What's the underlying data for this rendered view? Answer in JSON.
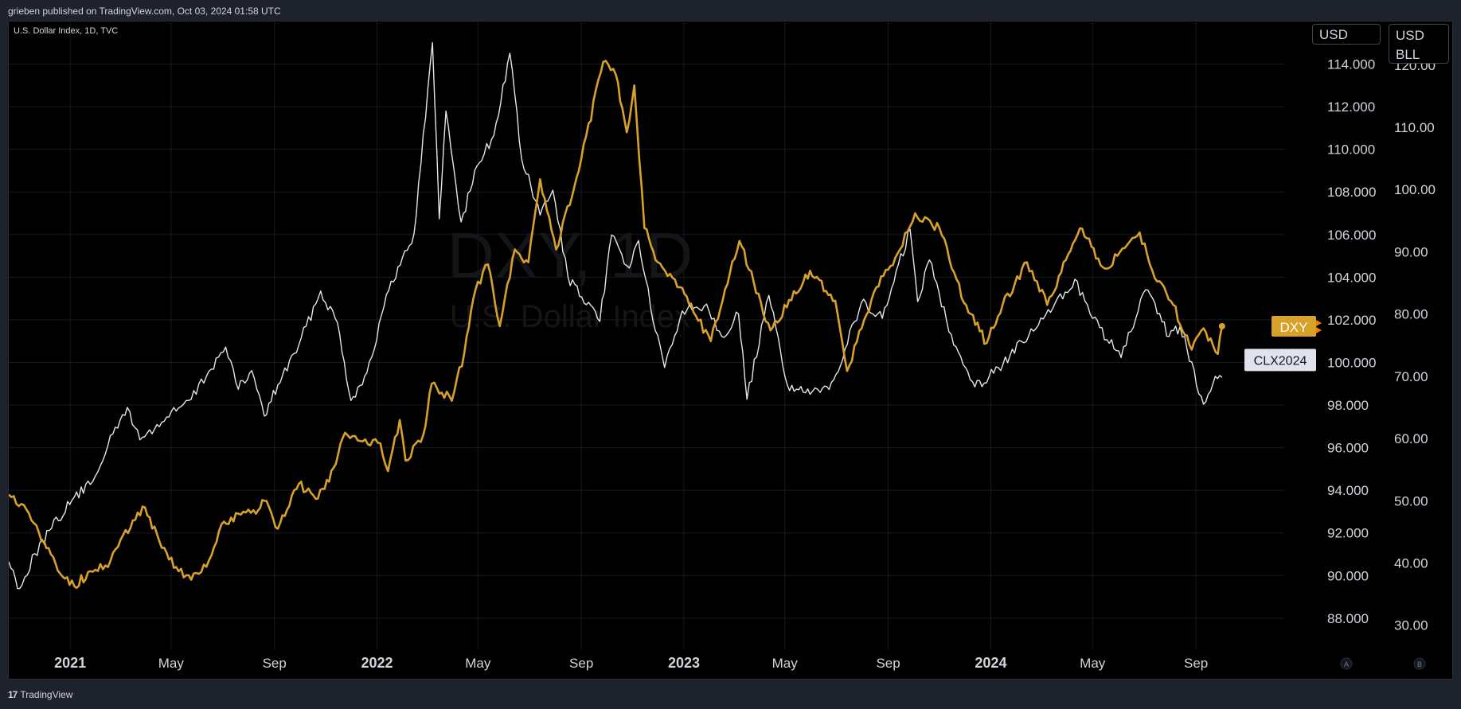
{
  "header": {
    "published_text": "grieben published on TradingView.com, Oct 03, 2024 01:58 UTC",
    "symbol_legend": "U.S. Dollar Index, 1D, TVC"
  },
  "footer": {
    "logo_text": "TradingView",
    "logo_icon": "tradingview-logo-icon"
  },
  "scale_buttons": {
    "left": "USD",
    "right_line1": "USD",
    "right_line2": "BLL"
  },
  "watermark": {
    "line1": "DXY, 1D",
    "line2": "U.S. Dollar Index"
  },
  "axis_badges": {
    "a": "A",
    "b": "B"
  },
  "colors": {
    "dxy": "#d8a129",
    "clx": "#e6e6e6",
    "background": "#000000",
    "frame": "#1e222d",
    "grid": "#161a23"
  },
  "chart_data": {
    "type": "line",
    "title": "",
    "grid": true,
    "x_tick_labels": [
      "2021",
      "May",
      "Sep",
      "2022",
      "May",
      "Sep",
      "2023",
      "May",
      "Sep",
      "2024",
      "May",
      "Sep"
    ],
    "x_tick_dates": [
      "2021-01-01",
      "2021-05-01",
      "2021-09-01",
      "2022-01-01",
      "2022-05-01",
      "2022-09-01",
      "2023-01-01",
      "2023-05-01",
      "2023-09-01",
      "2024-01-01",
      "2024-05-01",
      "2024-09-01"
    ],
    "x_range": [
      "2020-10-20",
      "2024-12-15"
    ],
    "left_axis": {
      "currency": "USD",
      "ylim": [
        86.5,
        116
      ],
      "ticks": [
        "88.000",
        "90.000",
        "92.000",
        "94.000",
        "96.000",
        "98.000",
        "100.000",
        "102.000",
        "104.000",
        "106.000",
        "108.000",
        "110.000",
        "112.000",
        "114.000"
      ],
      "tick_values": [
        88,
        90,
        92,
        94,
        96,
        98,
        100,
        102,
        104,
        106,
        108,
        110,
        112,
        114
      ]
    },
    "right_axis": {
      "currency": "USD / BLL",
      "ylim": [
        26,
        127
      ],
      "ticks": [
        "30.00",
        "40.00",
        "50.00",
        "60.00",
        "70.00",
        "80.00",
        "90.00",
        "100.00",
        "110.00",
        "120.00"
      ],
      "tick_values": [
        30,
        40,
        50,
        60,
        70,
        80,
        90,
        100,
        110,
        120
      ]
    },
    "series": [
      {
        "name": "DXY",
        "axis": "left",
        "color": "#d8a129",
        "last_value_label": "DXY",
        "points": [
          [
            "2020-10-20",
            93.8
          ],
          [
            "2020-11-10",
            93.1
          ],
          [
            "2020-12-01",
            91.6
          ],
          [
            "2020-12-20",
            90.1
          ],
          [
            "2021-01-06",
            89.5
          ],
          [
            "2021-01-25",
            90.2
          ],
          [
            "2021-02-15",
            90.4
          ],
          [
            "2021-03-05",
            91.9
          ],
          [
            "2021-03-31",
            93.2
          ],
          [
            "2021-04-20",
            91.3
          ],
          [
            "2021-05-10",
            90.2
          ],
          [
            "2021-05-25",
            89.8
          ],
          [
            "2021-06-15",
            90.7
          ],
          [
            "2021-06-30",
            92.4
          ],
          [
            "2021-07-20",
            92.9
          ],
          [
            "2021-08-10",
            92.9
          ],
          [
            "2021-08-20",
            93.5
          ],
          [
            "2021-09-05",
            92.2
          ],
          [
            "2021-09-30",
            94.3
          ],
          [
            "2021-10-20",
            93.6
          ],
          [
            "2021-11-05",
            94.4
          ],
          [
            "2021-11-24",
            96.7
          ],
          [
            "2021-12-15",
            96.3
          ],
          [
            "2022-01-05",
            96.2
          ],
          [
            "2022-01-14",
            94.9
          ],
          [
            "2022-01-28",
            97.3
          ],
          [
            "2022-02-04",
            95.4
          ],
          [
            "2022-02-25",
            96.6
          ],
          [
            "2022-03-07",
            99.0
          ],
          [
            "2022-03-31",
            98.2
          ],
          [
            "2022-04-15",
            100.5
          ],
          [
            "2022-04-28",
            103.4
          ],
          [
            "2022-05-13",
            104.6
          ],
          [
            "2022-05-27",
            101.7
          ],
          [
            "2022-06-14",
            105.3
          ],
          [
            "2022-06-30",
            104.7
          ],
          [
            "2022-07-14",
            108.6
          ],
          [
            "2022-08-02",
            105.3
          ],
          [
            "2022-08-29",
            109.0
          ],
          [
            "2022-09-27",
            114.1
          ],
          [
            "2022-10-12",
            113.5
          ],
          [
            "2022-10-25",
            110.8
          ],
          [
            "2022-11-03",
            113.0
          ],
          [
            "2022-11-15",
            106.3
          ],
          [
            "2022-12-01",
            104.7
          ],
          [
            "2022-12-30",
            103.5
          ],
          [
            "2023-01-15",
            102.2
          ],
          [
            "2023-02-02",
            101.0
          ],
          [
            "2023-03-08",
            105.7
          ],
          [
            "2023-04-14",
            101.5
          ],
          [
            "2023-05-31",
            104.3
          ],
          [
            "2023-06-30",
            102.9
          ],
          [
            "2023-07-14",
            99.6
          ],
          [
            "2023-08-15",
            103.3
          ],
          [
            "2023-09-15",
            105.3
          ],
          [
            "2023-10-03",
            107.0
          ],
          [
            "2023-11-01",
            106.3
          ],
          [
            "2023-11-30",
            102.8
          ],
          [
            "2023-12-27",
            100.9
          ],
          [
            "2024-01-15",
            102.7
          ],
          [
            "2024-02-13",
            104.7
          ],
          [
            "2024-03-08",
            102.7
          ],
          [
            "2024-04-16",
            106.3
          ],
          [
            "2024-05-16",
            104.4
          ],
          [
            "2024-06-26",
            106.1
          ],
          [
            "2024-07-17",
            103.8
          ],
          [
            "2024-08-05",
            102.7
          ],
          [
            "2024-08-27",
            100.6
          ],
          [
            "2024-09-10",
            101.6
          ],
          [
            "2024-09-27",
            100.4
          ],
          [
            "2024-10-02",
            101.7
          ]
        ]
      },
      {
        "name": "CLX2024",
        "axis": "right",
        "color": "#e6e6e6",
        "last_value_label": "CLX2024",
        "points": [
          [
            "2020-10-20",
            40.2
          ],
          [
            "2020-11-02",
            35.9
          ],
          [
            "2020-11-20",
            41.5
          ],
          [
            "2020-12-10",
            45.6
          ],
          [
            "2021-01-06",
            50.6
          ],
          [
            "2021-01-25",
            52.6
          ],
          [
            "2021-02-15",
            58.9
          ],
          [
            "2021-03-10",
            65.0
          ],
          [
            "2021-03-25",
            59.8
          ],
          [
            "2021-04-20",
            62.6
          ],
          [
            "2021-05-10",
            64.9
          ],
          [
            "2021-05-25",
            66.3
          ],
          [
            "2021-06-15",
            70.8
          ],
          [
            "2021-07-05",
            74.7
          ],
          [
            "2021-07-20",
            67.9
          ],
          [
            "2021-08-05",
            70.9
          ],
          [
            "2021-08-20",
            63.6
          ],
          [
            "2021-09-05",
            68.6
          ],
          [
            "2021-09-30",
            75.0
          ],
          [
            "2021-10-26",
            83.7
          ],
          [
            "2021-11-15",
            78.6
          ],
          [
            "2021-12-01",
            66.1
          ],
          [
            "2021-12-20",
            70.6
          ],
          [
            "2022-01-15",
            83.8
          ],
          [
            "2022-02-14",
            92.9
          ],
          [
            "2022-03-08",
            123.6
          ],
          [
            "2022-03-16",
            95.3
          ],
          [
            "2022-03-24",
            112.6
          ],
          [
            "2022-04-11",
            94.8
          ],
          [
            "2022-04-30",
            103.8
          ],
          [
            "2022-05-20",
            108.7
          ],
          [
            "2022-06-08",
            121.9
          ],
          [
            "2022-06-22",
            104.9
          ],
          [
            "2022-07-14",
            95.9
          ],
          [
            "2022-07-29",
            99.9
          ],
          [
            "2022-08-16",
            86.0
          ],
          [
            "2022-09-07",
            81.5
          ],
          [
            "2022-09-23",
            78.8
          ],
          [
            "2022-10-07",
            92.7
          ],
          [
            "2022-10-28",
            87.4
          ],
          [
            "2022-11-08",
            91.8
          ],
          [
            "2022-11-28",
            77.3
          ],
          [
            "2022-12-09",
            71.4
          ],
          [
            "2022-12-30",
            80.5
          ],
          [
            "2023-01-28",
            81.6
          ],
          [
            "2023-02-15",
            76.4
          ],
          [
            "2023-03-07",
            80.0
          ],
          [
            "2023-03-17",
            66.3
          ],
          [
            "2023-04-12",
            83.0
          ],
          [
            "2023-05-04",
            68.6
          ],
          [
            "2023-05-31",
            67.1
          ],
          [
            "2023-06-12",
            67.4
          ],
          [
            "2023-06-28",
            69.4
          ],
          [
            "2023-07-31",
            81.8
          ],
          [
            "2023-08-25",
            79.3
          ],
          [
            "2023-09-27",
            93.6
          ],
          [
            "2023-10-06",
            82.0
          ],
          [
            "2023-10-20",
            88.7
          ],
          [
            "2023-11-15",
            76.7
          ],
          [
            "2023-12-13",
            68.3
          ],
          [
            "2024-01-10",
            71.4
          ],
          [
            "2024-02-15",
            76.5
          ],
          [
            "2024-03-15",
            81.0
          ],
          [
            "2024-04-10",
            85.6
          ],
          [
            "2024-05-01",
            79.3
          ],
          [
            "2024-06-04",
            73.0
          ],
          [
            "2024-07-03",
            83.9
          ],
          [
            "2024-07-31",
            76.4
          ],
          [
            "2024-08-13",
            78.0
          ],
          [
            "2024-09-10",
            65.5
          ],
          [
            "2024-09-24",
            70.0
          ],
          [
            "2024-10-02",
            69.8
          ]
        ]
      }
    ]
  }
}
